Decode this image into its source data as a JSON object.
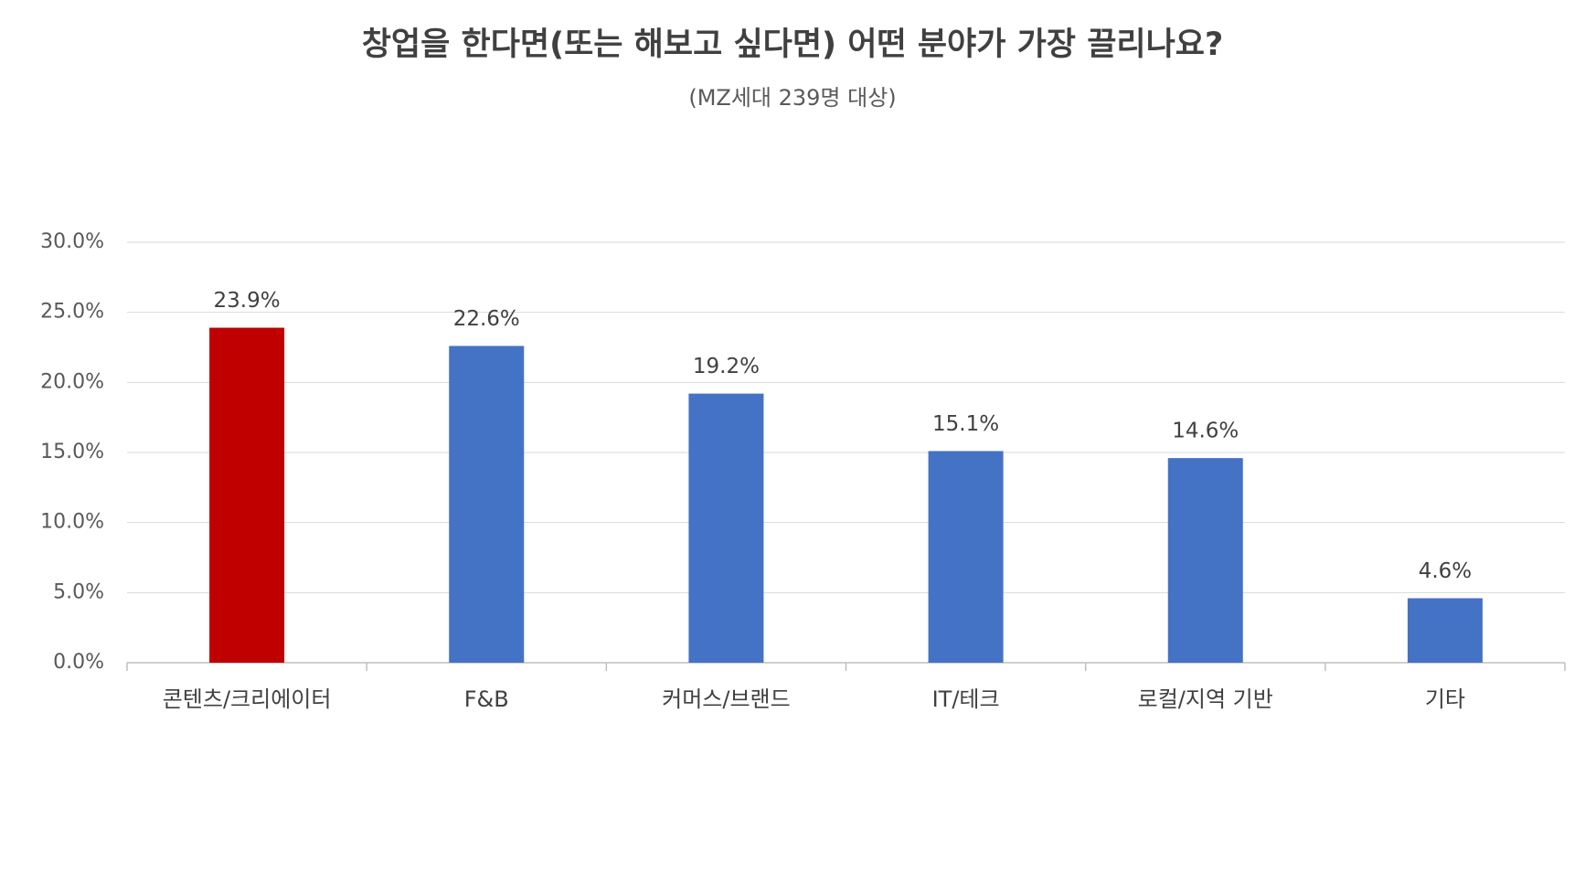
{
  "chart_data": {
    "type": "bar",
    "title": "창업을 한다면(또는 해보고 싶다면) 어떤 분야가 가장 끌리나요?",
    "subtitle": "(MZ세대 239명 대상)",
    "categories": [
      "콘텐츠/크리에이터",
      "F&B",
      "커머스/브랜드",
      "IT/테크",
      "로컬/지역 기반",
      "기타"
    ],
    "values": [
      23.9,
      22.6,
      19.2,
      15.1,
      14.6,
      4.6
    ],
    "value_labels": [
      "23.9%",
      "22.6%",
      "19.2%",
      "15.1%",
      "14.6%",
      "4.6%"
    ],
    "colors": [
      "#c00000",
      "#4472c4",
      "#4472c4",
      "#4472c4",
      "#4472c4",
      "#4472c4"
    ],
    "ylim": [
      0,
      30
    ],
    "yticks": [
      {
        "value": 0,
        "label": "0.0%"
      },
      {
        "value": 5,
        "label": "5.0%"
      },
      {
        "value": 10,
        "label": "10.0%"
      },
      {
        "value": 15,
        "label": "15.0%"
      },
      {
        "value": 20,
        "label": "20.0%"
      },
      {
        "value": 25,
        "label": "25.0%"
      },
      {
        "value": 30,
        "label": "30.0%"
      }
    ],
    "grid": true
  }
}
